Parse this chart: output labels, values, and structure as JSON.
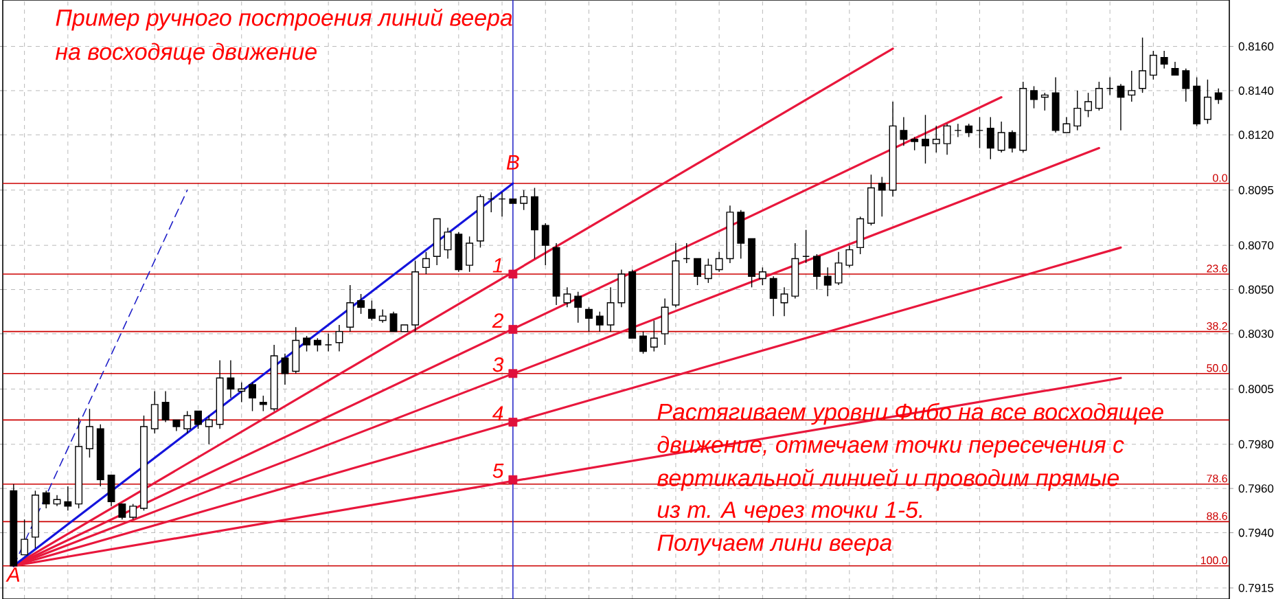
{
  "chart_data": {
    "type": "candlestick",
    "title": "Пример ручного построения линий веера",
    "subtitle": "на восходяще движение",
    "annotations": [
      "Растягиваем уровни Фибо на все восходящее",
      "движение, отмечаем точки пересечения с",
      "вертикальной линией и проводим прямые",
      "из  т. А через точки 1-5.",
      "Получаем лини веера",
      {
        "text": "A",
        "y": 0.7925
      },
      {
        "text": "B",
        "y": 0.8098
      },
      {
        "text": "1",
        "y": 0.8057
      },
      {
        "text": "2",
        "y": 0.8032
      },
      {
        "text": "3",
        "y": 0.8012
      },
      {
        "text": "4",
        "y": 0.799
      },
      {
        "text": "5",
        "y": 0.7964
      },
      {
        "text": "0.0",
        "y": 0.8098
      },
      {
        "text": "23.6",
        "y": 0.8057
      },
      {
        "text": "38.2",
        "y": 0.8031
      },
      {
        "text": "50.0",
        "y": 0.8012
      },
      {
        "text": "78.6",
        "y": 0.7962
      },
      {
        "text": "88.6",
        "y": 0.7945
      },
      {
        "text": "100.0",
        "y": 0.7925
      }
    ],
    "categories": [
      null,
      null,
      null,
      null,
      null,
      null,
      null,
      null,
      null,
      null,
      null,
      null,
      null,
      null,
      null,
      null,
      null,
      null,
      null,
      null,
      null,
      null,
      null,
      null,
      null,
      null,
      null,
      null,
      null,
      null,
      null,
      null,
      null,
      null,
      null,
      null,
      null,
      null,
      null,
      null,
      null,
      null,
      null,
      null,
      null,
      null,
      null,
      null,
      null,
      null,
      null,
      null,
      null,
      null,
      null,
      null,
      null,
      null,
      null,
      null,
      null,
      null,
      null,
      null,
      null,
      null,
      null,
      null,
      null,
      null,
      null,
      null,
      null,
      null,
      null,
      null,
      null,
      null,
      null,
      null,
      null,
      null,
      null,
      null,
      null,
      null,
      null,
      null,
      null,
      null,
      null,
      null,
      null,
      null,
      null,
      null,
      null,
      null,
      null,
      null,
      null,
      null,
      null,
      null,
      null,
      null,
      null,
      null,
      null,
      null,
      null,
      null
    ],
    "ohlc": [
      [
        0.7959,
        0.7962,
        0.7925,
        0.7925
      ],
      [
        0.793,
        0.7946,
        0.793,
        0.7937
      ],
      [
        0.7938,
        0.7959,
        0.7933,
        0.7957
      ],
      [
        0.7958,
        0.7959,
        0.7951,
        0.7953
      ],
      [
        0.7953,
        0.7957,
        0.7952,
        0.7955
      ],
      [
        0.7954,
        0.7961,
        0.795,
        0.7952
      ],
      [
        0.7953,
        0.7992,
        0.7951,
        0.7979
      ],
      [
        0.7978,
        0.7996,
        0.7974,
        0.7988
      ],
      [
        0.7987,
        0.7989,
        0.7961,
        0.7964
      ],
      [
        0.7966,
        0.7966,
        0.7952,
        0.7954
      ],
      [
        0.7953,
        0.7953,
        0.7946,
        0.7947
      ],
      [
        0.7947,
        0.7953,
        0.7946,
        0.7952
      ],
      [
        0.7951,
        0.7993,
        0.795,
        0.7988
      ],
      [
        0.7987,
        0.8004,
        0.7985,
        0.7998
      ],
      [
        0.7999,
        0.8004,
        0.799,
        0.7991
      ],
      [
        0.7991,
        0.7991,
        0.7986,
        0.7988
      ],
      [
        0.7987,
        0.7995,
        0.7985,
        0.7993
      ],
      [
        0.7995,
        0.7995,
        0.7987,
        0.7989
      ],
      [
        0.7988,
        0.7993,
        0.798,
        0.7991
      ],
      [
        0.7989,
        0.8018,
        0.7987,
        0.801
      ],
      [
        0.801,
        0.8018,
        0.8001,
        0.8005
      ],
      [
        0.8004,
        0.8008,
        0.7999,
        0.8005
      ],
      [
        0.8007,
        0.8008,
        0.7995,
        0.8001
      ],
      [
        0.7999,
        0.8002,
        0.7995,
        0.7998
      ],
      [
        0.7996,
        0.8025,
        0.7995,
        0.802
      ],
      [
        0.8019,
        0.8021,
        0.8007,
        0.8012
      ],
      [
        0.8013,
        0.8033,
        0.8012,
        0.8027
      ],
      [
        0.8028,
        0.8029,
        0.8022,
        0.8025
      ],
      [
        0.8027,
        0.8028,
        0.8022,
        0.8025
      ],
      [
        0.8025,
        0.803,
        0.8022,
        0.8025
      ],
      [
        0.8026,
        0.8034,
        0.8022,
        0.8031
      ],
      [
        0.8033,
        0.8052,
        0.8031,
        0.8044
      ],
      [
        0.8045,
        0.8048,
        0.8039,
        0.8042
      ],
      [
        0.8041,
        0.8045,
        0.8036,
        0.8037
      ],
      [
        0.8036,
        0.8041,
        0.8035,
        0.8038
      ],
      [
        0.8039,
        0.804,
        0.8031,
        0.8031
      ],
      [
        0.8031,
        0.8034,
        0.8031,
        0.8034
      ],
      [
        0.8034,
        0.8063,
        0.8031,
        0.8058
      ],
      [
        0.806,
        0.8067,
        0.8057,
        0.8064
      ],
      [
        0.8065,
        0.8082,
        0.8061,
        0.8082
      ],
      [
        0.8068,
        0.8078,
        0.8064,
        0.8076
      ],
      [
        0.8075,
        0.8076,
        0.8058,
        0.8059
      ],
      [
        0.8061,
        0.8074,
        0.8058,
        0.8071
      ],
      [
        0.8072,
        0.8093,
        0.8069,
        0.8092
      ],
      [
        0.8091,
        0.8094,
        0.8085,
        0.8091
      ],
      [
        0.8091,
        0.8094,
        0.8083,
        0.8091
      ],
      [
        0.8091,
        0.8091,
        0.8089,
        0.8089
      ],
      [
        0.8089,
        0.8095,
        0.8086,
        0.8092
      ],
      [
        0.8092,
        0.8096,
        0.8064,
        0.8077
      ],
      [
        0.8079,
        0.808,
        0.8061,
        0.807
      ],
      [
        0.8069,
        0.8071,
        0.8043,
        0.8047
      ],
      [
        0.8044,
        0.8051,
        0.8042,
        0.8048
      ],
      [
        0.8047,
        0.8049,
        0.8035,
        0.8042
      ],
      [
        0.8041,
        0.8042,
        0.8031,
        0.8037
      ],
      [
        0.8038,
        0.804,
        0.8031,
        0.8034
      ],
      [
        0.8034,
        0.8051,
        0.8031,
        0.8044
      ],
      [
        0.8044,
        0.8059,
        0.8042,
        0.8057
      ],
      [
        0.8058,
        0.8059,
        0.8028,
        0.8028
      ],
      [
        0.8029,
        0.8031,
        0.8021,
        0.8022
      ],
      [
        0.8024,
        0.8036,
        0.8022,
        0.8028
      ],
      [
        0.803,
        0.8046,
        0.8025,
        0.8042
      ],
      [
        0.8043,
        0.8071,
        0.8042,
        0.8063
      ],
      [
        0.8064,
        0.8071,
        0.8062,
        0.8064
      ],
      [
        0.8064,
        0.8064,
        0.8052,
        0.8056
      ],
      [
        0.8055,
        0.8064,
        0.8053,
        0.8061
      ],
      [
        0.8059,
        0.8067,
        0.8058,
        0.8064
      ],
      [
        0.8064,
        0.8088,
        0.8062,
        0.8085
      ],
      [
        0.8085,
        0.8086,
        0.8064,
        0.8071
      ],
      [
        0.8073,
        0.8073,
        0.8051,
        0.8056
      ],
      [
        0.8055,
        0.806,
        0.8052,
        0.8058
      ],
      [
        0.8055,
        0.8056,
        0.8038,
        0.8046
      ],
      [
        0.8044,
        0.8051,
        0.8038,
        0.8048
      ],
      [
        0.8047,
        0.8071,
        0.8046,
        0.8064
      ],
      [
        0.8065,
        0.8077,
        0.8062,
        0.8065
      ],
      [
        0.8065,
        0.8066,
        0.805,
        0.8056
      ],
      [
        0.8056,
        0.806,
        0.8047,
        0.8052
      ],
      [
        0.8053,
        0.8067,
        0.8052,
        0.8062
      ],
      [
        0.8061,
        0.807,
        0.806,
        0.8068
      ],
      [
        0.8069,
        0.8083,
        0.8066,
        0.8082
      ],
      [
        0.808,
        0.8102,
        0.8079,
        0.8096
      ],
      [
        0.8098,
        0.8101,
        0.8083,
        0.8095
      ],
      [
        0.8095,
        0.8135,
        0.8092,
        0.8124
      ],
      [
        0.8122,
        0.8128,
        0.8115,
        0.8118
      ],
      [
        0.8118,
        0.8119,
        0.8113,
        0.8117
      ],
      [
        0.8118,
        0.8129,
        0.8107,
        0.8115
      ],
      [
        0.8116,
        0.8124,
        0.8112,
        0.8118
      ],
      [
        0.8116,
        0.8125,
        0.8111,
        0.8124
      ],
      [
        0.8122,
        0.8125,
        0.8119,
        0.8122
      ],
      [
        0.8124,
        0.8125,
        0.8119,
        0.8121
      ],
      [
        0.8122,
        0.8128,
        0.8114,
        0.8122
      ],
      [
        0.8123,
        0.8128,
        0.8109,
        0.8114
      ],
      [
        0.8113,
        0.8126,
        0.8112,
        0.8121
      ],
      [
        0.8121,
        0.8122,
        0.8112,
        0.8114
      ],
      [
        0.8113,
        0.8144,
        0.8112,
        0.8141
      ],
      [
        0.814,
        0.8142,
        0.8132,
        0.8136
      ],
      [
        0.8137,
        0.8139,
        0.8131,
        0.8138
      ],
      [
        0.8139,
        0.8146,
        0.8121,
        0.8122
      ],
      [
        0.8121,
        0.8128,
        0.8121,
        0.8125
      ],
      [
        0.8124,
        0.814,
        0.8122,
        0.8132
      ],
      [
        0.8131,
        0.8139,
        0.8128,
        0.8135
      ],
      [
        0.8132,
        0.8144,
        0.8131,
        0.8141
      ],
      [
        0.8141,
        0.8146,
        0.8138,
        0.8141
      ],
      [
        0.8142,
        0.8143,
        0.8122,
        0.8137
      ],
      [
        0.8138,
        0.8149,
        0.8135,
        0.814
      ],
      [
        0.8141,
        0.8164,
        0.8139,
        0.8149
      ],
      [
        0.8147,
        0.8158,
        0.8145,
        0.8156
      ],
      [
        0.8155,
        0.8158,
        0.815,
        0.8152
      ],
      [
        0.815,
        0.8153,
        0.8147,
        0.8147
      ],
      [
        0.8149,
        0.815,
        0.8135,
        0.8141
      ],
      [
        0.8142,
        0.8146,
        0.8124,
        0.8125
      ],
      [
        0.8127,
        0.8145,
        0.8125,
        0.8137
      ],
      [
        0.8139,
        0.8141,
        0.8134,
        0.8136
      ]
    ],
    "series": [
      {
        "type": "line",
        "color": "#e8173c",
        "values": [
          0.7925,
          null,
          null,
          null,
          null,
          null,
          null,
          null,
          null,
          null,
          null,
          null,
          null,
          null,
          null,
          null,
          null,
          null,
          null,
          null,
          null,
          null,
          null,
          null,
          null,
          null,
          null,
          null,
          null,
          null,
          null,
          null,
          null,
          null,
          null,
          null,
          null,
          null,
          null,
          null,
          null,
          null,
          null,
          null,
          null,
          null,
          null,
          null,
          null,
          null,
          null,
          null,
          null,
          null,
          null,
          null,
          null,
          null,
          null,
          null,
          null,
          null,
          null,
          null,
          null,
          null,
          null,
          null,
          null,
          null,
          null,
          null,
          null,
          null,
          null,
          null,
          null,
          null,
          null,
          null,
          null,
          0.8159,
          null,
          null,
          null,
          null,
          null,
          null,
          null,
          null,
          null,
          null,
          null,
          null,
          null,
          null,
          null,
          null,
          null,
          null,
          null,
          null,
          null,
          null,
          null,
          null,
          null,
          null,
          null,
          null,
          null,
          null
        ]
      },
      {
        "type": "line",
        "color": "#e8173c",
        "values": [
          0.7925,
          null,
          null,
          null,
          null,
          null,
          null,
          null,
          null,
          null,
          null,
          null,
          null,
          null,
          null,
          null,
          null,
          null,
          null,
          null,
          null,
          null,
          null,
          null,
          null,
          null,
          null,
          null,
          null,
          null,
          null,
          null,
          null,
          null,
          null,
          null,
          null,
          null,
          null,
          null,
          null,
          null,
          null,
          null,
          null,
          null,
          null,
          null,
          null,
          null,
          null,
          null,
          null,
          null,
          null,
          null,
          null,
          null,
          null,
          null,
          null,
          null,
          null,
          null,
          null,
          null,
          null,
          null,
          null,
          null,
          null,
          null,
          null,
          null,
          null,
          null,
          null,
          null,
          null,
          null,
          null,
          null,
          null,
          null,
          null,
          null,
          null,
          null,
          null,
          null,
          null,
          0.8137,
          null,
          null,
          null,
          null,
          null,
          null,
          null,
          null,
          null,
          null,
          null,
          null,
          null,
          null,
          null,
          null,
          null,
          null,
          null,
          null
        ]
      },
      {
        "type": "line",
        "color": "#e8173c",
        "values": [
          0.7925,
          null,
          null,
          null,
          null,
          null,
          null,
          null,
          null,
          null,
          null,
          null,
          null,
          null,
          null,
          null,
          null,
          null,
          null,
          null,
          null,
          null,
          null,
          null,
          null,
          null,
          null,
          null,
          null,
          null,
          null,
          null,
          null,
          null,
          null,
          null,
          null,
          null,
          null,
          null,
          null,
          null,
          null,
          null,
          null,
          null,
          null,
          null,
          null,
          null,
          null,
          null,
          null,
          null,
          null,
          null,
          null,
          null,
          null,
          null,
          null,
          null,
          null,
          null,
          null,
          null,
          null,
          null,
          null,
          null,
          null,
          null,
          null,
          null,
          null,
          null,
          null,
          null,
          null,
          null,
          null,
          null,
          null,
          null,
          null,
          null,
          null,
          null,
          null,
          null,
          null,
          null,
          null,
          null,
          null,
          null,
          null,
          null,
          null,
          null,
          0.8114,
          null,
          null,
          null,
          null,
          null,
          null,
          null,
          null,
          null,
          null,
          null
        ]
      },
      {
        "type": "line",
        "color": "#e8173c",
        "values": [
          0.7925,
          null,
          null,
          null,
          null,
          null,
          null,
          null,
          null,
          null,
          null,
          null,
          null,
          null,
          null,
          null,
          null,
          null,
          null,
          null,
          null,
          null,
          null,
          null,
          null,
          null,
          null,
          null,
          null,
          null,
          null,
          null,
          null,
          null,
          null,
          null,
          null,
          null,
          null,
          null,
          null,
          null,
          null,
          null,
          null,
          null,
          null,
          null,
          null,
          null,
          null,
          null,
          null,
          null,
          null,
          null,
          null,
          null,
          null,
          null,
          null,
          null,
          null,
          null,
          null,
          null,
          null,
          null,
          null,
          null,
          null,
          null,
          null,
          null,
          null,
          null,
          null,
          null,
          null,
          null,
          null,
          null,
          null,
          null,
          null,
          null,
          null,
          null,
          null,
          null,
          null,
          null,
          null,
          null,
          null,
          null,
          null,
          null,
          null,
          null,
          null,
          null,
          0.8069,
          null,
          null,
          null,
          null,
          null,
          null,
          null,
          null,
          null
        ]
      },
      {
        "type": "line",
        "color": "#e8173c",
        "values": [
          0.7925,
          null,
          null,
          null,
          null,
          null,
          null,
          null,
          null,
          null,
          null,
          null,
          null,
          null,
          null,
          null,
          null,
          null,
          null,
          null,
          null,
          null,
          null,
          null,
          null,
          null,
          null,
          null,
          null,
          null,
          null,
          null,
          null,
          null,
          null,
          null,
          null,
          null,
          null,
          null,
          null,
          null,
          null,
          null,
          null,
          null,
          null,
          null,
          null,
          null,
          null,
          null,
          null,
          null,
          null,
          null,
          null,
          null,
          null,
          null,
          null,
          null,
          null,
          null,
          null,
          null,
          null,
          null,
          null,
          null,
          null,
          null,
          null,
          null,
          null,
          null,
          null,
          null,
          null,
          null,
          null,
          null,
          null,
          null,
          null,
          null,
          null,
          null,
          null,
          null,
          null,
          null,
          null,
          null,
          null,
          null,
          null,
          null,
          null,
          null,
          null,
          null,
          0.801,
          null,
          null,
          null,
          null,
          null,
          null,
          null,
          null,
          null
        ]
      },
      {
        "type": "line",
        "color": "#1414dc",
        "values": [
          0.7925,
          null,
          null,
          null,
          null,
          null,
          null,
          null,
          null,
          null,
          null,
          null,
          null,
          null,
          null,
          null,
          null,
          null,
          null,
          null,
          null,
          null,
          null,
          null,
          null,
          null,
          null,
          null,
          null,
          null,
          null,
          null,
          null,
          null,
          null,
          null,
          null,
          null,
          null,
          null,
          null,
          null,
          null,
          null,
          null,
          null,
          0.8098,
          null,
          null,
          null,
          null,
          null,
          null,
          null,
          null,
          null,
          null,
          null,
          null,
          null,
          null,
          null,
          null,
          null,
          null,
          null,
          null,
          null,
          null,
          null,
          null,
          null,
          null,
          null,
          null,
          null,
          null,
          null,
          null,
          null,
          null,
          null,
          null,
          null,
          null,
          null,
          null,
          null,
          null,
          null,
          null,
          null,
          null,
          null,
          null,
          null,
          null,
          null,
          null,
          null,
          null,
          null,
          null,
          null,
          null,
          null,
          null,
          null,
          null,
          null,
          null,
          null
        ]
      },
      {
        "type": "line",
        "color": "#1e1ec8",
        "line_style": "dashed",
        "values": [
          0.7925,
          null,
          null,
          null,
          null,
          null,
          null,
          null,
          null,
          null,
          null,
          null,
          null,
          null,
          null,
          null,
          0.8095,
          null,
          null,
          null,
          null,
          null,
          null,
          null,
          null,
          null,
          null,
          null,
          null,
          null,
          null,
          null,
          null,
          null,
          null,
          null,
          null,
          null,
          null,
          null,
          null,
          null,
          null,
          null,
          null,
          null,
          null,
          null,
          null,
          null,
          null,
          null,
          null,
          null,
          null,
          null,
          null,
          null,
          null,
          null,
          null,
          null,
          null,
          null,
          null,
          null,
          null,
          null,
          null,
          null,
          null,
          null,
          null,
          null,
          null,
          null,
          null,
          null,
          null,
          null,
          null,
          null,
          null,
          null,
          null,
          null,
          null,
          null,
          null,
          null,
          null,
          null,
          null,
          null,
          null,
          null,
          null,
          null,
          null,
          null,
          null,
          null,
          null,
          null,
          null,
          null,
          null,
          null,
          null,
          null,
          null,
          null
        ]
      },
      {
        "type": "scatter",
        "color": "#e0103c",
        "marker": "square",
        "values": [
          null,
          null,
          null,
          null,
          null,
          null,
          null,
          null,
          null,
          null,
          null,
          null,
          null,
          null,
          null,
          null,
          null,
          null,
          null,
          null,
          null,
          null,
          null,
          null,
          null,
          null,
          null,
          null,
          null,
          null,
          null,
          null,
          null,
          null,
          null,
          null,
          null,
          null,
          null,
          null,
          null,
          null,
          null,
          null,
          null,
          null,
          0.8057,
          null,
          null,
          null,
          null,
          null,
          null,
          null,
          null,
          null,
          null,
          null,
          null,
          null,
          null,
          null,
          null,
          null,
          null,
          null,
          null,
          null,
          null,
          null,
          null,
          null,
          null,
          null,
          null,
          null,
          null,
          null,
          null,
          null,
          null,
          null,
          null,
          null,
          null,
          null,
          null,
          null,
          null,
          null,
          null,
          null,
          null,
          null,
          null,
          null,
          null,
          null,
          null,
          null,
          null,
          null,
          null,
          null,
          null,
          null,
          null,
          null,
          null,
          null,
          null,
          null
        ]
      },
      {
        "type": "scatter",
        "color": "#e0103c",
        "marker": "square",
        "values": [
          null,
          null,
          null,
          null,
          null,
          null,
          null,
          null,
          null,
          null,
          null,
          null,
          null,
          null,
          null,
          null,
          null,
          null,
          null,
          null,
          null,
          null,
          null,
          null,
          null,
          null,
          null,
          null,
          null,
          null,
          null,
          null,
          null,
          null,
          null,
          null,
          null,
          null,
          null,
          null,
          null,
          null,
          null,
          null,
          null,
          null,
          0.8032,
          null,
          null,
          null,
          null,
          null,
          null,
          null,
          null,
          null,
          null,
          null,
          null,
          null,
          null,
          null,
          null,
          null,
          null,
          null,
          null,
          null,
          null,
          null,
          null,
          null,
          null,
          null,
          null,
          null,
          null,
          null,
          null,
          null,
          null,
          null,
          null,
          null,
          null,
          null,
          null,
          null,
          null,
          null,
          null,
          null,
          null,
          null,
          null,
          null,
          null,
          null,
          null,
          null,
          null,
          null,
          null,
          null,
          null,
          null,
          null,
          null,
          null,
          null,
          null,
          null
        ]
      },
      {
        "type": "scatter",
        "color": "#e0103c",
        "marker": "square",
        "values": [
          null,
          null,
          null,
          null,
          null,
          null,
          null,
          null,
          null,
          null,
          null,
          null,
          null,
          null,
          null,
          null,
          null,
          null,
          null,
          null,
          null,
          null,
          null,
          null,
          null,
          null,
          null,
          null,
          null,
          null,
          null,
          null,
          null,
          null,
          null,
          null,
          null,
          null,
          null,
          null,
          null,
          null,
          null,
          null,
          null,
          null,
          0.8012,
          null,
          null,
          null,
          null,
          null,
          null,
          null,
          null,
          null,
          null,
          null,
          null,
          null,
          null,
          null,
          null,
          null,
          null,
          null,
          null,
          null,
          null,
          null,
          null,
          null,
          null,
          null,
          null,
          null,
          null,
          null,
          null,
          null,
          null,
          null,
          null,
          null,
          null,
          null,
          null,
          null,
          null,
          null,
          null,
          null,
          null,
          null,
          null,
          null,
          null,
          null,
          null,
          null,
          null,
          null,
          null,
          null,
          null,
          null,
          null,
          null,
          null,
          null,
          null,
          null
        ]
      },
      {
        "type": "scatter",
        "color": "#e0103c",
        "marker": "square",
        "values": [
          null,
          null,
          null,
          null,
          null,
          null,
          null,
          null,
          null,
          null,
          null,
          null,
          null,
          null,
          null,
          null,
          null,
          null,
          null,
          null,
          null,
          null,
          null,
          null,
          null,
          null,
          null,
          null,
          null,
          null,
          null,
          null,
          null,
          null,
          null,
          null,
          null,
          null,
          null,
          null,
          null,
          null,
          null,
          null,
          null,
          null,
          0.799,
          null,
          null,
          null,
          null,
          null,
          null,
          null,
          null,
          null,
          null,
          null,
          null,
          null,
          null,
          null,
          null,
          null,
          null,
          null,
          null,
          null,
          null,
          null,
          null,
          null,
          null,
          null,
          null,
          null,
          null,
          null,
          null,
          null,
          null,
          null,
          null,
          null,
          null,
          null,
          null,
          null,
          null,
          null,
          null,
          null,
          null,
          null,
          null,
          null,
          null,
          null,
          null,
          null,
          null,
          null,
          null,
          null,
          null,
          null,
          null,
          null,
          null,
          null,
          null,
          null
        ]
      },
      {
        "type": "scatter",
        "color": "#e0103c",
        "marker": "square",
        "values": [
          null,
          null,
          null,
          null,
          null,
          null,
          null,
          null,
          null,
          null,
          null,
          null,
          null,
          null,
          null,
          null,
          null,
          null,
          null,
          null,
          null,
          null,
          null,
          null,
          null,
          null,
          null,
          null,
          null,
          null,
          null,
          null,
          null,
          null,
          null,
          null,
          null,
          null,
          null,
          null,
          null,
          null,
          null,
          null,
          null,
          null,
          0.7964,
          null,
          null,
          null,
          null,
          null,
          null,
          null,
          null,
          null,
          null,
          null,
          null,
          null,
          null,
          null,
          null,
          null,
          null,
          null,
          null,
          null,
          null,
          null,
          null,
          null,
          null,
          null,
          null,
          null,
          null,
          null,
          null,
          null,
          null,
          null,
          null,
          null,
          null,
          null,
          null,
          null,
          null,
          null,
          null,
          null,
          null,
          null,
          null,
          null,
          null,
          null,
          null,
          null,
          null,
          null,
          null,
          null,
          null,
          null,
          null,
          null,
          null,
          null,
          null,
          null
        ]
      }
    ],
    "ref_lines": [
      {
        "axis": "y",
        "value": 0.8098,
        "color": "#cc0000"
      },
      {
        "axis": "y",
        "value": 0.8057,
        "color": "#cc0000"
      },
      {
        "axis": "y",
        "value": 0.8031,
        "color": "#cc0000"
      },
      {
        "axis": "y",
        "value": 0.8012,
        "color": "#cc0000"
      },
      {
        "axis": "y",
        "value": 0.7991,
        "color": "#cc0000"
      },
      {
        "axis": "y",
        "value": 0.7962,
        "color": "#cc0000"
      },
      {
        "axis": "y",
        "value": 0.7945,
        "color": "#cc0000"
      },
      {
        "axis": "y",
        "value": 0.7925,
        "color": "#cc0000"
      }
    ],
    "ylim": [
      0.791,
      0.8181
    ],
    "yticks": [
      {
        "value": 0.816,
        "label": "0.8160"
      },
      {
        "value": 0.814,
        "label": "0.8140"
      },
      {
        "value": 0.812,
        "label": "0.8120"
      },
      0.8095,
      {
        "value": 0.807,
        "label": "0.8070"
      },
      {
        "value": 0.805,
        "label": "0.8050"
      },
      {
        "value": 0.803,
        "label": "0.8030"
      },
      0.8005,
      {
        "value": 0.798,
        "label": "0.7980"
      },
      {
        "value": 0.796,
        "label": "0.7960"
      },
      {
        "value": 0.794,
        "label": "0.7940"
      },
      0.7915
    ],
    "grid": true,
    "tick_labels": "y"
  }
}
